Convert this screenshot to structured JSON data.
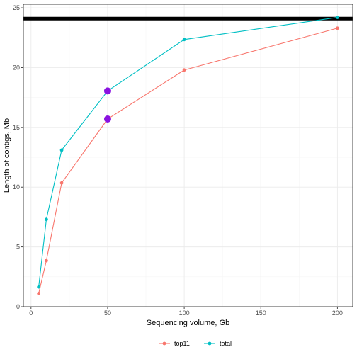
{
  "chart_data": {
    "type": "line",
    "xlabel": "Sequencing volume, Gb",
    "ylabel": "Length of contigs, Mb",
    "xlim": [
      -5,
      210
    ],
    "ylim": [
      0,
      25.3
    ],
    "xticks": [
      0,
      50,
      100,
      150,
      200
    ],
    "yticks": [
      0,
      5,
      10,
      15,
      20,
      25
    ],
    "grid": true,
    "legend_position": "bottom",
    "reference_line": {
      "y": 24.1,
      "color": "#000000"
    },
    "series": [
      {
        "name": "top11",
        "color": "#F8766D",
        "x": [
          5,
          10,
          20,
          50,
          100,
          200
        ],
        "y": [
          1.1,
          3.85,
          10.35,
          15.7,
          19.8,
          23.3
        ]
      },
      {
        "name": "total",
        "color": "#00BFC4",
        "x": [
          5,
          10,
          20,
          50,
          100,
          200
        ],
        "y": [
          1.65,
          7.3,
          13.1,
          18.05,
          22.35,
          24.2
        ]
      }
    ],
    "highlighted_points": [
      {
        "x": 50,
        "y": 18.05,
        "color": "#8A12E0"
      },
      {
        "x": 50,
        "y": 15.7,
        "color": "#8A12E0"
      }
    ]
  }
}
